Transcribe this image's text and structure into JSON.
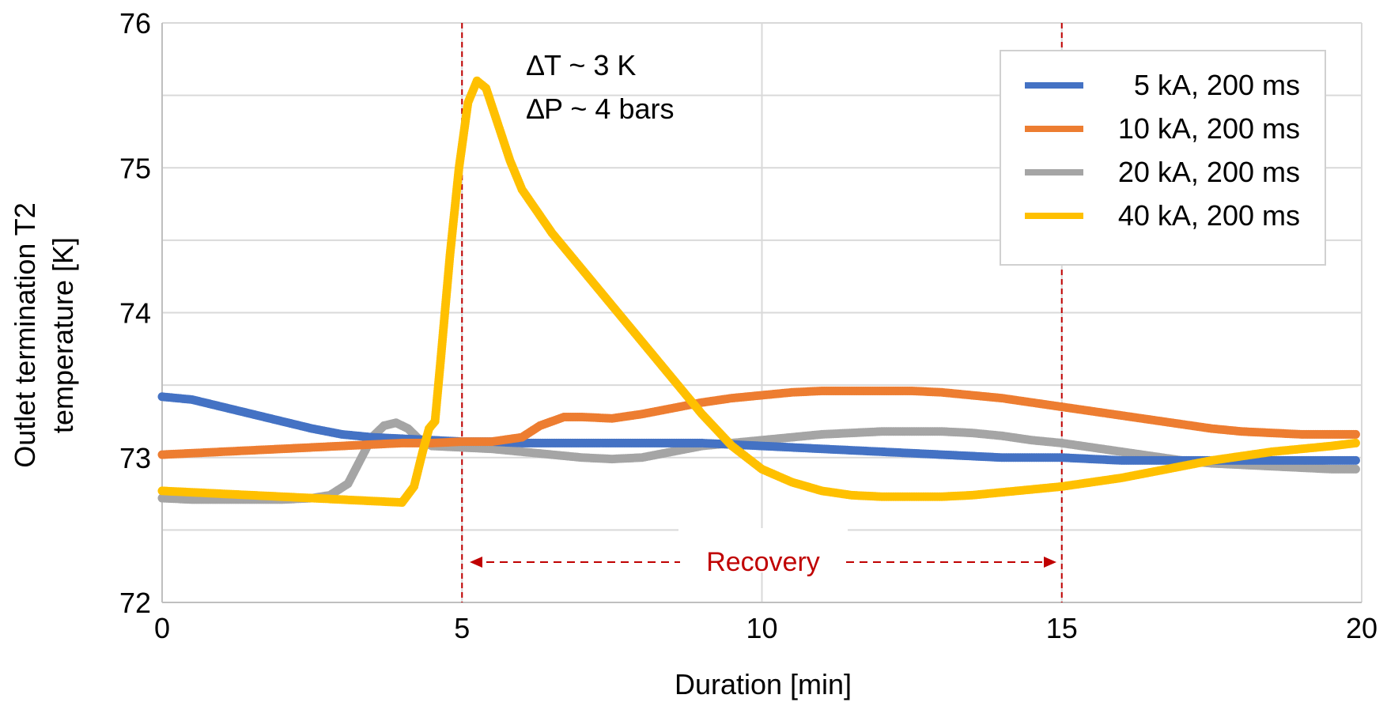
{
  "chart_data": {
    "type": "scatter",
    "xlabel": "Duration [min]",
    "ylabel_lines": [
      "Outlet termination T2",
      "temperature [K]"
    ],
    "xlim": [
      0,
      20
    ],
    "ylim": [
      72,
      76
    ],
    "x_ticks": [
      0,
      5,
      10,
      15,
      20
    ],
    "y_ticks": [
      72,
      73,
      74,
      75,
      76
    ],
    "grid": true,
    "legend_position": "top-right",
    "annotations": {
      "delta_t": "∆T ~ 3 K",
      "delta_p": "∆P ~ 4 bars",
      "recovery": "Recovery"
    },
    "reference_lines_x": [
      5,
      15
    ],
    "recovery_span": [
      5,
      15
    ],
    "series": [
      {
        "name": "5 kA, 200 ms",
        "color": "#4472C4",
        "points": [
          [
            0,
            73.42
          ],
          [
            0.5,
            73.4
          ],
          [
            1,
            73.35
          ],
          [
            1.5,
            73.3
          ],
          [
            2,
            73.25
          ],
          [
            2.5,
            73.2
          ],
          [
            3,
            73.16
          ],
          [
            3.5,
            73.14
          ],
          [
            4,
            73.13
          ],
          [
            4.5,
            73.12
          ],
          [
            5,
            73.11
          ],
          [
            5.5,
            73.11
          ],
          [
            6,
            73.1
          ],
          [
            6.5,
            73.1
          ],
          [
            7,
            73.1
          ],
          [
            7.5,
            73.1
          ],
          [
            8,
            73.1
          ],
          [
            8.5,
            73.1
          ],
          [
            9,
            73.1
          ],
          [
            9.5,
            73.09
          ],
          [
            10,
            73.08
          ],
          [
            10.5,
            73.07
          ],
          [
            11,
            73.06
          ],
          [
            11.5,
            73.05
          ],
          [
            12,
            73.04
          ],
          [
            12.5,
            73.03
          ],
          [
            13,
            73.02
          ],
          [
            13.5,
            73.01
          ],
          [
            14,
            73.0
          ],
          [
            14.5,
            73.0
          ],
          [
            15,
            73.0
          ],
          [
            15.5,
            72.99
          ],
          [
            16,
            72.98
          ],
          [
            16.5,
            72.98
          ],
          [
            17,
            72.98
          ],
          [
            17.5,
            72.98
          ],
          [
            18,
            72.98
          ],
          [
            18.5,
            72.98
          ],
          [
            19,
            72.98
          ],
          [
            19.5,
            72.98
          ],
          [
            19.9,
            72.98
          ]
        ]
      },
      {
        "name": "10 kA, 200 ms",
        "color": "#ED7D31",
        "points": [
          [
            0,
            73.02
          ],
          [
            0.5,
            73.03
          ],
          [
            1,
            73.04
          ],
          [
            1.5,
            73.05
          ],
          [
            2,
            73.06
          ],
          [
            2.5,
            73.07
          ],
          [
            3,
            73.08
          ],
          [
            3.5,
            73.09
          ],
          [
            4,
            73.1
          ],
          [
            4.5,
            73.1
          ],
          [
            5,
            73.11
          ],
          [
            5.5,
            73.11
          ],
          [
            6,
            73.14
          ],
          [
            6.3,
            73.22
          ],
          [
            6.7,
            73.28
          ],
          [
            7,
            73.28
          ],
          [
            7.5,
            73.27
          ],
          [
            8,
            73.3
          ],
          [
            8.5,
            73.34
          ],
          [
            9,
            73.38
          ],
          [
            9.5,
            73.41
          ],
          [
            10,
            73.43
          ],
          [
            10.5,
            73.45
          ],
          [
            11,
            73.46
          ],
          [
            11.5,
            73.46
          ],
          [
            12,
            73.46
          ],
          [
            12.5,
            73.46
          ],
          [
            13,
            73.45
          ],
          [
            13.5,
            73.43
          ],
          [
            14,
            73.41
          ],
          [
            14.5,
            73.38
          ],
          [
            15,
            73.35
          ],
          [
            15.5,
            73.32
          ],
          [
            16,
            73.29
          ],
          [
            16.5,
            73.26
          ],
          [
            17,
            73.23
          ],
          [
            17.5,
            73.2
          ],
          [
            18,
            73.18
          ],
          [
            18.5,
            73.17
          ],
          [
            19,
            73.16
          ],
          [
            19.5,
            73.16
          ],
          [
            19.9,
            73.16
          ]
        ]
      },
      {
        "name": "20 kA, 200 ms",
        "color": "#A5A5A5",
        "points": [
          [
            0,
            72.72
          ],
          [
            0.5,
            72.71
          ],
          [
            1,
            72.71
          ],
          [
            1.5,
            72.71
          ],
          [
            2,
            72.71
          ],
          [
            2.5,
            72.72
          ],
          [
            2.8,
            72.74
          ],
          [
            3.1,
            72.82
          ],
          [
            3.3,
            72.98
          ],
          [
            3.5,
            73.14
          ],
          [
            3.7,
            73.22
          ],
          [
            3.9,
            73.24
          ],
          [
            4.1,
            73.2
          ],
          [
            4.3,
            73.12
          ],
          [
            4.5,
            73.08
          ],
          [
            5,
            73.07
          ],
          [
            5.5,
            73.06
          ],
          [
            6,
            73.04
          ],
          [
            6.5,
            73.02
          ],
          [
            7,
            73.0
          ],
          [
            7.5,
            72.99
          ],
          [
            8,
            73.0
          ],
          [
            8.5,
            73.04
          ],
          [
            9,
            73.08
          ],
          [
            9.5,
            73.1
          ],
          [
            10,
            73.12
          ],
          [
            10.5,
            73.14
          ],
          [
            11,
            73.16
          ],
          [
            11.5,
            73.17
          ],
          [
            12,
            73.18
          ],
          [
            12.5,
            73.18
          ],
          [
            13,
            73.18
          ],
          [
            13.5,
            73.17
          ],
          [
            14,
            73.15
          ],
          [
            14.5,
            73.12
          ],
          [
            15,
            73.1
          ],
          [
            15.5,
            73.07
          ],
          [
            16,
            73.04
          ],
          [
            16.5,
            73.01
          ],
          [
            17,
            72.98
          ],
          [
            17.5,
            72.96
          ],
          [
            18,
            72.95
          ],
          [
            18.5,
            72.94
          ],
          [
            19,
            72.93
          ],
          [
            19.5,
            72.92
          ],
          [
            19.9,
            72.92
          ]
        ]
      },
      {
        "name": "40 kA, 200 ms",
        "color": "#FFC000",
        "points": [
          [
            0,
            72.77
          ],
          [
            0.5,
            72.76
          ],
          [
            1,
            72.75
          ],
          [
            1.5,
            72.74
          ],
          [
            2,
            72.73
          ],
          [
            2.5,
            72.72
          ],
          [
            3,
            72.71
          ],
          [
            3.5,
            72.7
          ],
          [
            4,
            72.69
          ],
          [
            4.2,
            72.8
          ],
          [
            4.35,
            73.05
          ],
          [
            4.45,
            73.2
          ],
          [
            4.55,
            73.25
          ],
          [
            4.65,
            73.7
          ],
          [
            4.8,
            74.4
          ],
          [
            4.95,
            75.0
          ],
          [
            5.1,
            75.45
          ],
          [
            5.25,
            75.6
          ],
          [
            5.4,
            75.55
          ],
          [
            5.6,
            75.3
          ],
          [
            5.8,
            75.05
          ],
          [
            6,
            74.85
          ],
          [
            6.5,
            74.55
          ],
          [
            7,
            74.3
          ],
          [
            7.5,
            74.05
          ],
          [
            8,
            73.8
          ],
          [
            8.5,
            73.55
          ],
          [
            9,
            73.3
          ],
          [
            9.5,
            73.08
          ],
          [
            10,
            72.92
          ],
          [
            10.5,
            72.83
          ],
          [
            11,
            72.77
          ],
          [
            11.5,
            72.74
          ],
          [
            12,
            72.73
          ],
          [
            12.5,
            72.73
          ],
          [
            13,
            72.73
          ],
          [
            13.5,
            72.74
          ],
          [
            14,
            72.76
          ],
          [
            14.5,
            72.78
          ],
          [
            15,
            72.8
          ],
          [
            15.5,
            72.83
          ],
          [
            16,
            72.86
          ],
          [
            16.5,
            72.9
          ],
          [
            17,
            72.94
          ],
          [
            17.5,
            72.98
          ],
          [
            18,
            73.01
          ],
          [
            18.5,
            73.04
          ],
          [
            19,
            73.06
          ],
          [
            19.5,
            73.08
          ],
          [
            19.9,
            73.1
          ]
        ]
      }
    ]
  }
}
